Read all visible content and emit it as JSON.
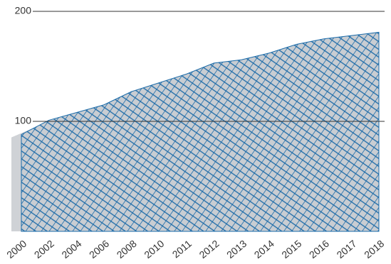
{
  "chart_data": {
    "type": "area",
    "categories": [
      "2000",
      "2002",
      "2004",
      "2006",
      "2008",
      "2010",
      "2011",
      "2012",
      "2013",
      "2014",
      "2015",
      "2016",
      "2017",
      "2018"
    ],
    "values": [
      88,
      101,
      108,
      115,
      127,
      135,
      143,
      153,
      156,
      162,
      170,
      175,
      178,
      181
    ],
    "color": "#1a6aa8",
    "ylim": [
      0,
      200
    ],
    "yticks": [
      100,
      200
    ],
    "grid": true
  }
}
